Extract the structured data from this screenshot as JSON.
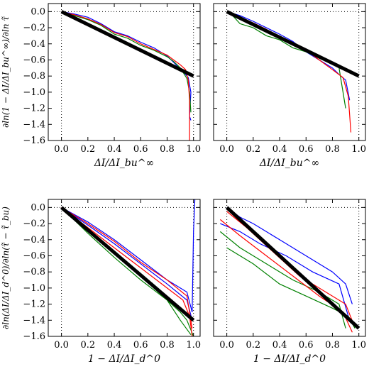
{
  "chart_data": [
    {
      "type": "line",
      "panel": "top-left",
      "xlabel": "ΔI/ΔI_bu^∞",
      "ylabel": "∂ln(1 − ΔI/ΔI_bu^∞)/∂ln τ̃",
      "xlim": [
        -0.1,
        1.05
      ],
      "ylim": [
        -1.6,
        0.1
      ],
      "xticks": [
        "0.0",
        "0.2",
        "0.4",
        "0.6",
        "0.8",
        "1.0"
      ],
      "yticks": [
        "0.0",
        "−0.2",
        "−0.4",
        "−0.6",
        "−0.8",
        "−1.0",
        "−1.2",
        "−1.4",
        "−1.6"
      ],
      "dotted_lines": {
        "x": [
          0.0,
          1.0
        ],
        "y": [
          0.0
        ]
      },
      "reference_line": {
        "x": [
          0.0,
          1.0
        ],
        "y": [
          0.0,
          -0.8
        ]
      },
      "series": [
        {
          "color": "#0000ff",
          "x": [
            0.0,
            0.1,
            0.2,
            0.3,
            0.4,
            0.5,
            0.6,
            0.7,
            0.8,
            0.85,
            0.88,
            0.92,
            0.96,
            0.98,
            0.97,
            0.98
          ],
          "y": [
            0.0,
            -0.03,
            -0.07,
            -0.15,
            -0.25,
            -0.3,
            -0.38,
            -0.45,
            -0.55,
            -0.63,
            -0.68,
            -0.74,
            -0.82,
            -1.0,
            -1.3,
            -1.35
          ]
        },
        {
          "color": "#008000",
          "x": [
            0.0,
            0.1,
            0.2,
            0.3,
            0.4,
            0.5,
            0.6,
            0.7,
            0.8,
            0.85,
            0.9,
            0.95,
            0.97,
            0.98
          ],
          "y": [
            0.0,
            -0.05,
            -0.1,
            -0.17,
            -0.28,
            -0.33,
            -0.42,
            -0.48,
            -0.56,
            -0.62,
            -0.7,
            -0.83,
            -1.0,
            -1.25
          ]
        },
        {
          "color": "#ff0000",
          "x": [
            0.0,
            0.1,
            0.2,
            0.3,
            0.4,
            0.5,
            0.6,
            0.7,
            0.8,
            0.85,
            0.9,
            0.94,
            0.96,
            0.97,
            0.97
          ],
          "y": [
            0.0,
            -0.04,
            -0.09,
            -0.16,
            -0.26,
            -0.31,
            -0.4,
            -0.47,
            -0.54,
            -0.6,
            -0.66,
            -0.72,
            -0.85,
            -1.1,
            -1.6
          ]
        }
      ]
    },
    {
      "type": "line",
      "panel": "top-right",
      "xlabel": "ΔI/ΔI_bu^∞",
      "ylabel": "",
      "xlim": [
        -0.1,
        1.05
      ],
      "ylim": [
        -1.6,
        0.1
      ],
      "xticks": [
        "0.0",
        "0.2",
        "0.4",
        "0.6",
        "0.8",
        "1.0"
      ],
      "yticks": [],
      "dotted_lines": {
        "x": [
          0.0,
          1.0
        ],
        "y": [
          0.0
        ]
      },
      "reference_line": {
        "x": [
          0.0,
          1.0
        ],
        "y": [
          0.0,
          -0.8
        ]
      },
      "series": [
        {
          "color": "#0000ff",
          "x": [
            0.0,
            0.1,
            0.2,
            0.3,
            0.4,
            0.5,
            0.6,
            0.7,
            0.8,
            0.85,
            0.9,
            0.93
          ],
          "y": [
            0.0,
            -0.05,
            -0.12,
            -0.2,
            -0.28,
            -0.37,
            -0.5,
            -0.6,
            -0.7,
            -0.78,
            -0.85,
            -1.1
          ]
        },
        {
          "color": "#008000",
          "x": [
            0.0,
            0.05,
            0.1,
            0.2,
            0.3,
            0.4,
            0.5,
            0.6,
            0.7,
            0.8,
            0.85,
            0.9
          ],
          "y": [
            0.0,
            -0.06,
            -0.15,
            -0.2,
            -0.3,
            -0.35,
            -0.45,
            -0.5,
            -0.58,
            -0.65,
            -0.7,
            -1.2
          ]
        },
        {
          "color": "#ff0000",
          "x": [
            0.0,
            0.1,
            0.2,
            0.3,
            0.4,
            0.5,
            0.6,
            0.7,
            0.8,
            0.88,
            0.92,
            0.94
          ],
          "y": [
            0.0,
            -0.08,
            -0.14,
            -0.22,
            -0.33,
            -0.4,
            -0.48,
            -0.6,
            -0.72,
            -0.82,
            -1.05,
            -1.5
          ]
        }
      ]
    },
    {
      "type": "line",
      "panel": "bottom-left",
      "xlabel": "1 − ΔI/ΔI_d^0",
      "ylabel": "∂ln(ΔI/ΔI_d^0)/∂ln(τ̃ − τ̃_bu)",
      "xlim": [
        -0.1,
        1.05
      ],
      "ylim": [
        -1.6,
        0.1
      ],
      "xticks": [
        "0.0",
        "0.2",
        "0.4",
        "0.6",
        "0.8",
        "1.0"
      ],
      "yticks": [
        "0.0",
        "−0.2",
        "−0.4",
        "−0.6",
        "−0.8",
        "−1.0",
        "−1.2",
        "−1.4",
        "−1.6"
      ],
      "dotted_lines": {
        "x": [
          0.0,
          1.0
        ],
        "y": [
          0.0
        ]
      },
      "reference_line": {
        "x": [
          0.0,
          1.0
        ],
        "y": [
          0.0,
          -1.4
        ]
      },
      "series": [
        {
          "color": "#0000ff",
          "x": [
            0.0,
            0.2,
            0.4,
            0.6,
            0.8,
            0.95,
            0.99,
            1.0,
            1.01
          ],
          "y": [
            0.0,
            -0.18,
            -0.4,
            -0.65,
            -0.9,
            -1.05,
            -1.3,
            -0.3,
            0.1
          ]
        },
        {
          "color": "#0000ff",
          "x": [
            0.0,
            0.2,
            0.4,
            0.6,
            0.8,
            0.95,
            0.99
          ],
          "y": [
            0.0,
            -0.22,
            -0.45,
            -0.7,
            -0.95,
            -1.15,
            -1.4
          ]
        },
        {
          "color": "#008000",
          "x": [
            0.0,
            0.2,
            0.4,
            0.6,
            0.8,
            0.9,
            0.95,
            1.0
          ],
          "y": [
            0.0,
            -0.32,
            -0.62,
            -0.9,
            -1.15,
            -1.3,
            -1.4,
            -1.6
          ]
        },
        {
          "color": "#008000",
          "x": [
            0.0,
            0.2,
            0.4,
            0.6,
            0.8,
            0.9,
            0.98
          ],
          "y": [
            0.0,
            -0.28,
            -0.55,
            -0.85,
            -1.15,
            -1.4,
            -1.58
          ]
        },
        {
          "color": "#ff0000",
          "x": [
            0.0,
            0.2,
            0.4,
            0.6,
            0.8,
            0.92,
            0.97,
            0.99
          ],
          "y": [
            0.0,
            -0.25,
            -0.5,
            -0.75,
            -1.0,
            -1.15,
            -1.35,
            -1.6
          ]
        },
        {
          "color": "#ff0000",
          "x": [
            0.0,
            0.2,
            0.4,
            0.6,
            0.8,
            0.95,
            0.99
          ],
          "y": [
            0.0,
            -0.2,
            -0.42,
            -0.68,
            -0.9,
            -1.1,
            -1.5
          ]
        }
      ]
    },
    {
      "type": "line",
      "panel": "bottom-right",
      "xlabel": "1 − ΔI/ΔI_d^0",
      "ylabel": "",
      "xlim": [
        -0.1,
        1.05
      ],
      "ylim": [
        -1.6,
        0.1
      ],
      "xticks": [
        "0.0",
        "0.2",
        "0.4",
        "0.6",
        "0.8",
        "1.0"
      ],
      "yticks": [],
      "dotted_lines": {
        "x": [
          0.0,
          1.0
        ],
        "y": [
          0.0
        ]
      },
      "reference_line": {
        "x": [
          0.0,
          1.0
        ],
        "y": [
          0.0,
          -1.5
        ]
      },
      "series": [
        {
          "color": "#0000ff",
          "x": [
            0.0,
            0.1,
            0.2,
            0.4,
            0.6,
            0.8,
            0.9,
            0.95
          ],
          "y": [
            0.0,
            -0.12,
            -0.2,
            -0.4,
            -0.6,
            -0.8,
            -0.95,
            -1.2
          ]
        },
        {
          "color": "#0000ff",
          "x": [
            -0.05,
            0.1,
            0.25,
            0.45,
            0.65,
            0.85,
            0.92
          ],
          "y": [
            -0.2,
            -0.3,
            -0.45,
            -0.6,
            -0.8,
            -0.95,
            -1.35
          ]
        },
        {
          "color": "#008000",
          "x": [
            -0.05,
            0.1,
            0.3,
            0.5,
            0.7,
            0.85,
            0.9
          ],
          "y": [
            -0.3,
            -0.5,
            -0.7,
            -0.9,
            -1.05,
            -1.2,
            -1.5
          ]
        },
        {
          "color": "#008000",
          "x": [
            0.0,
            0.2,
            0.4,
            0.6,
            0.8,
            0.92,
            0.97
          ],
          "y": [
            -0.5,
            -0.7,
            -0.95,
            -1.1,
            -1.25,
            -1.35,
            -1.5
          ]
        },
        {
          "color": "#ff0000",
          "x": [
            0.0,
            0.15,
            0.35,
            0.55,
            0.75,
            0.9,
            0.96
          ],
          "y": [
            -0.05,
            -0.25,
            -0.55,
            -0.85,
            -1.05,
            -1.2,
            -1.45
          ]
        },
        {
          "color": "#ff0000",
          "x": [
            -0.05,
            0.1,
            0.3,
            0.5,
            0.7,
            0.88,
            0.95
          ],
          "y": [
            -0.15,
            -0.35,
            -0.6,
            -0.85,
            -1.1,
            -1.3,
            -1.55
          ]
        }
      ]
    }
  ]
}
